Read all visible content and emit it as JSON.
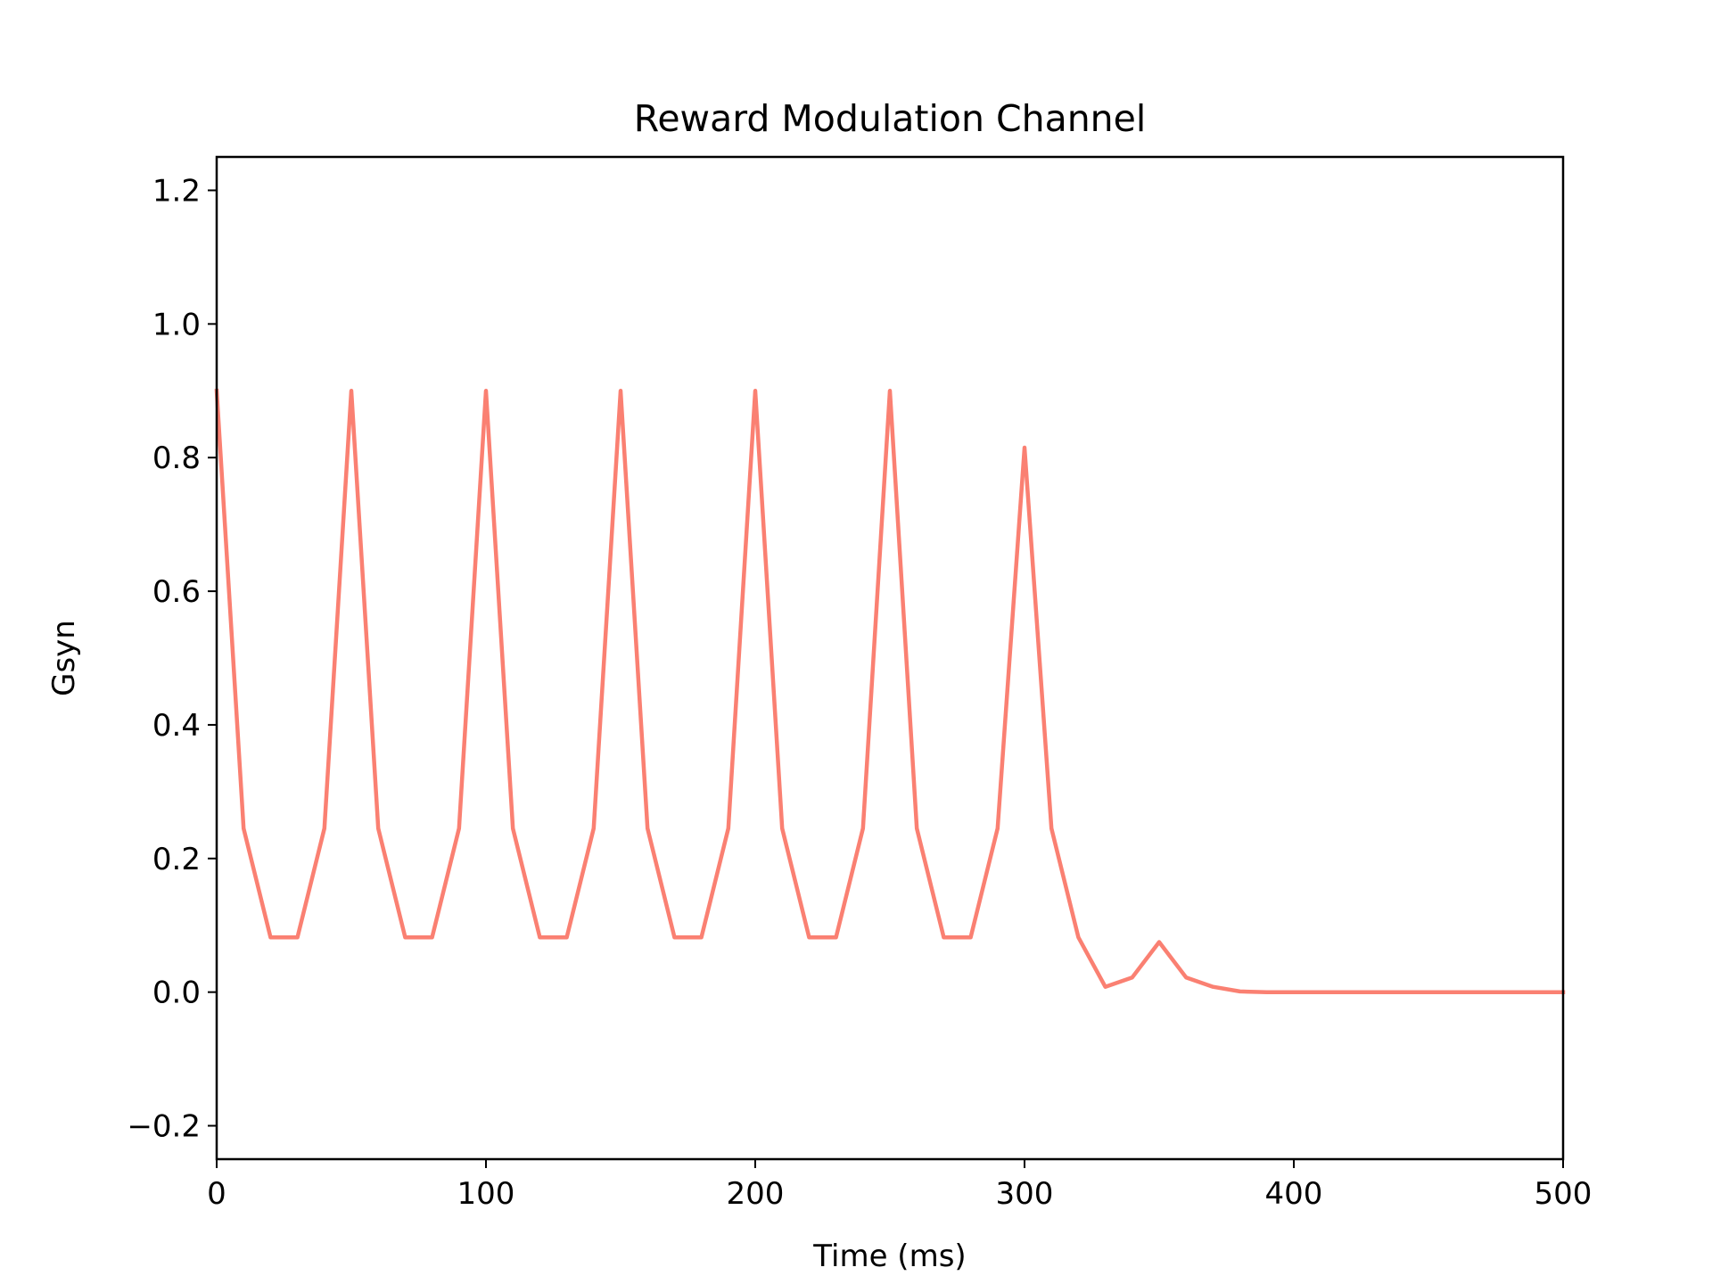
{
  "chart_data": {
    "type": "line",
    "title": "Reward Modulation Channel",
    "xlabel": "Time (ms)",
    "ylabel": "Gsyn",
    "xlim": [
      0,
      500
    ],
    "ylim": [
      -0.25,
      1.25
    ],
    "xticks": [
      0,
      100,
      200,
      300,
      400,
      500
    ],
    "xtick_labels": [
      "0",
      "100",
      "200",
      "300",
      "400",
      "500"
    ],
    "yticks": [
      -0.2,
      0.0,
      0.2,
      0.4,
      0.6,
      0.8,
      1.0,
      1.2
    ],
    "ytick_labels": [
      "−0.2",
      "0.0",
      "0.2",
      "0.4",
      "0.6",
      "0.8",
      "1.0",
      "1.2"
    ],
    "grid": false,
    "series": [
      {
        "color": "#fa8072",
        "x": [
          0,
          10,
          20,
          30,
          40,
          50,
          60,
          70,
          80,
          90,
          100,
          110,
          120,
          130,
          140,
          150,
          160,
          170,
          180,
          190,
          200,
          210,
          220,
          230,
          240,
          250,
          260,
          270,
          280,
          290,
          300,
          310,
          320,
          330,
          340,
          350,
          360,
          370,
          380,
          390,
          400,
          410,
          420,
          430,
          440,
          450,
          460,
          470,
          480,
          490,
          500
        ],
        "y": [
          0.9,
          0.245,
          0.082,
          0.082,
          0.245,
          0.9,
          0.245,
          0.082,
          0.082,
          0.245,
          0.9,
          0.245,
          0.082,
          0.082,
          0.245,
          0.9,
          0.245,
          0.082,
          0.082,
          0.245,
          0.9,
          0.245,
          0.082,
          0.082,
          0.245,
          0.9,
          0.245,
          0.082,
          0.082,
          0.245,
          0.815,
          0.245,
          0.082,
          0.008,
          0.022,
          0.075,
          0.022,
          0.008,
          0.001,
          0.0,
          0.0,
          0.0,
          0.0,
          0.0,
          0.0,
          0.0,
          0.0,
          0.0,
          0.0,
          0.0,
          0.0
        ]
      }
    ]
  }
}
